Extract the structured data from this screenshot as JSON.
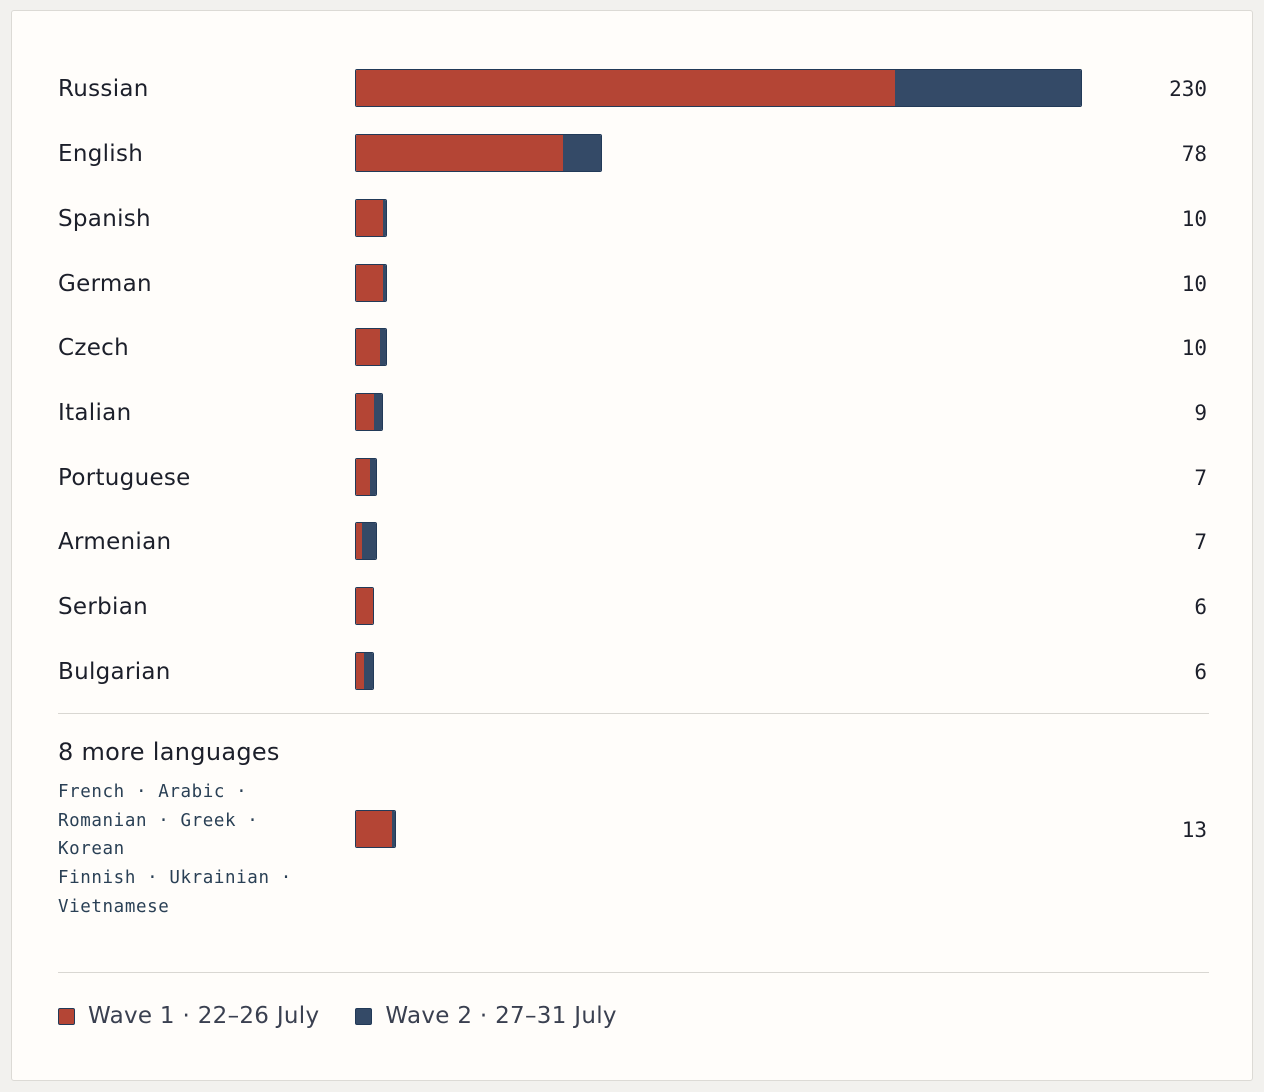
{
  "colors": {
    "wave1": "#b44535",
    "wave2": "#344a67"
  },
  "chart_data": {
    "type": "bar",
    "orientation": "horizontal",
    "stacked": true,
    "categories": [
      "Russian",
      "English",
      "Spanish",
      "German",
      "Czech",
      "Italian",
      "Portuguese",
      "Armenian",
      "Serbian",
      "Bulgarian",
      "8 more languages"
    ],
    "series": [
      {
        "name": "Wave 1 · 22–26 July",
        "values": [
          171,
          66,
          9,
          9,
          8,
          6,
          5,
          2,
          6,
          3,
          12
        ]
      },
      {
        "name": "Wave 2 · 27–31 July",
        "values": [
          59,
          12,
          1,
          1,
          2,
          3,
          2,
          5,
          0,
          3,
          1
        ]
      }
    ],
    "totals": [
      "230",
      "78",
      "10",
      "10",
      "10",
      "9",
      "7",
      "7",
      "6",
      "6",
      "13"
    ],
    "xlim": [
      0,
      230
    ],
    "grid": false,
    "legend_position": "bottom-left"
  },
  "other": {
    "title": "8 more languages",
    "list": [
      "French · Arabic ·",
      "Romanian · Greek ·",
      "Korean",
      "Finnish · Ukrainian ·",
      "Vietnamese"
    ]
  },
  "legend": [
    {
      "label": "Wave 1 · 22–26 July",
      "color": "#b44535"
    },
    {
      "label": "Wave 2 · 27–31 July",
      "color": "#344a67"
    }
  ]
}
